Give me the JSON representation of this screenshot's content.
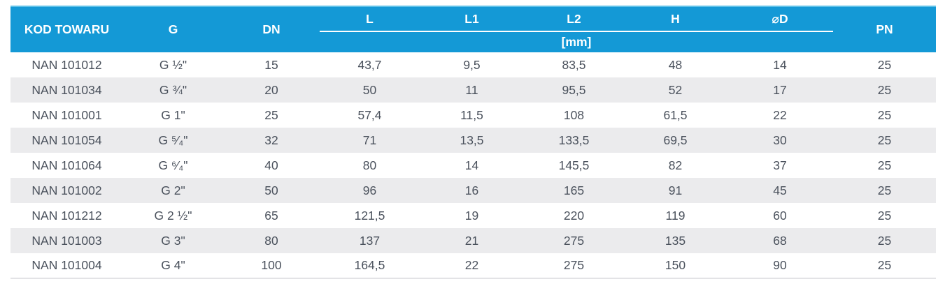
{
  "table": {
    "columns": [
      "KOD TOWARU",
      "G",
      "DN",
      "L",
      "L1",
      "L2",
      "H",
      "⌀D",
      "PN"
    ],
    "unit_label": "[mm]",
    "rows": [
      [
        "NAN 101012",
        "G ½\"",
        "15",
        "43,7",
        "9,5",
        "83,5",
        "48",
        "14",
        "25"
      ],
      [
        "NAN 101034",
        "G ¾\"",
        "20",
        "50",
        "11",
        "95,5",
        "52",
        "17",
        "25"
      ],
      [
        "NAN 101001",
        "G 1\"",
        "25",
        "57,4",
        "11,5",
        "108",
        "61,5",
        "22",
        "25"
      ],
      [
        "NAN 101054",
        "G ⁵⁄₄\"",
        "32",
        "71",
        "13,5",
        "133,5",
        "69,5",
        "30",
        "25"
      ],
      [
        "NAN 101064",
        "G ⁶⁄₄\"",
        "40",
        "80",
        "14",
        "145,5",
        "82",
        "37",
        "25"
      ],
      [
        "NAN 101002",
        "G 2\"",
        "50",
        "96",
        "16",
        "165",
        "91",
        "45",
        "25"
      ],
      [
        "NAN 101212",
        "G 2 ½\"",
        "65",
        "121,5",
        "19",
        "220",
        "119",
        "60",
        "25"
      ],
      [
        "NAN 101003",
        "G 3\"",
        "80",
        "137",
        "21",
        "275",
        "135",
        "68",
        "25"
      ],
      [
        "NAN 101004",
        "G 4\"",
        "100",
        "164,5",
        "22",
        "275",
        "150",
        "90",
        "25"
      ]
    ],
    "colors": {
      "header_bg": "#1499d6",
      "header_top_edge": "#5fc1e8",
      "header_text": "#ffffff",
      "stripe_bg": "#ebebed",
      "row_bg": "#ffffff",
      "body_text": "#4a515c",
      "bottom_rule": "#e3e3e6"
    }
  }
}
